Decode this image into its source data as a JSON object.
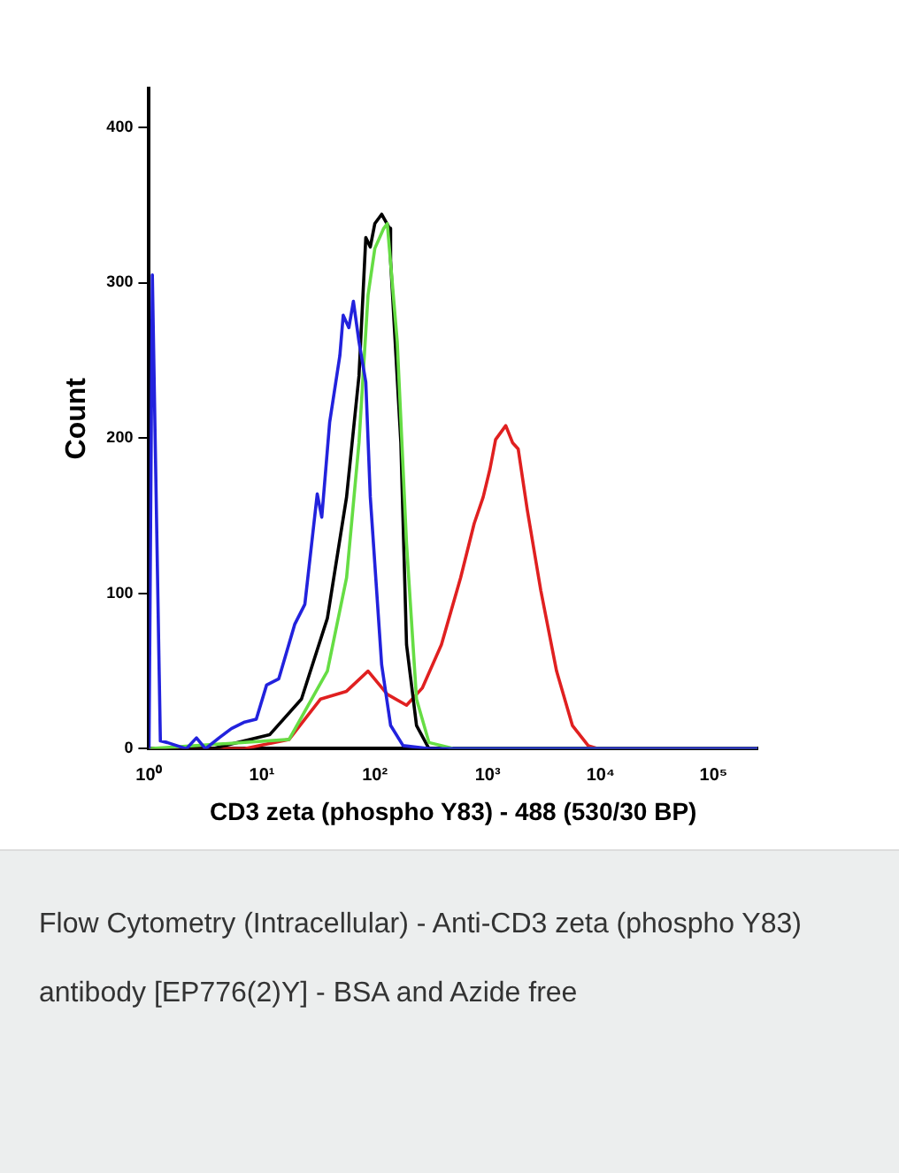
{
  "chart_data": {
    "type": "line",
    "xlabel": "CD3 zeta (phospho Y83) - 488 (530/30 BP)",
    "ylabel": "Count",
    "annotations": [
      "Flow Cytometry (Intracellular) - Anti-CD3 zeta (phospho Y83) antibody [EP776(2)Y] - BSA and Azide free"
    ],
    "log": "x",
    "grid": false,
    "legend": false,
    "marker": "none",
    "line_style": "solid",
    "xlim": [
      1,
      245000
    ],
    "ylim": [
      0,
      425
    ],
    "xticks": [
      {
        "value": 1,
        "label": "10⁰"
      },
      {
        "value": 10,
        "label": "10¹"
      },
      {
        "value": 100,
        "label": "10²"
      },
      {
        "value": 1000,
        "label": "10³"
      },
      {
        "value": 10000,
        "label": "10⁴"
      },
      {
        "value": 100000,
        "label": "10⁵"
      }
    ],
    "yticks": [
      0,
      100,
      200,
      300,
      400
    ],
    "series": [
      {
        "color": "#2222dd",
        "x": [
          1,
          1.07,
          1.26,
          1.45,
          2.14,
          2.63,
          3.16,
          4.17,
          5.37,
          6.92,
          8.91,
          11,
          14.1,
          19.5,
          24,
          30.9,
          33.9,
          39.8,
          49,
          52.5,
          58.9,
          64.6,
          72.4,
          83.2,
          91.2,
          115,
          138,
          178,
          302,
          245000
        ],
        "values": [
          0,
          305,
          5,
          4,
          0,
          7,
          0,
          7,
          13,
          17,
          19,
          41,
          45,
          80,
          93,
          164,
          149,
          210,
          253,
          279,
          271,
          288,
          262,
          236,
          162,
          54,
          15,
          2,
          0,
          0
        ]
      },
      {
        "color": "#66dd44",
        "x": [
          1,
          17.4,
          38,
          56.2,
          72.4,
          87.1,
          100,
          120,
          129,
          158,
          191,
          234,
          302,
          501,
          245000
        ],
        "values": [
          0,
          6,
          50,
          110,
          197,
          292,
          322,
          335,
          338,
          262,
          132,
          32,
          4,
          0,
          0
        ]
      },
      {
        "color": "#000000",
        "x": [
          1,
          3.63,
          11.7,
          22.4,
          38,
          56.2,
          72.4,
          83.2,
          91.2,
          100,
          115,
          135,
          138,
          170,
          191,
          234,
          302,
          245000
        ],
        "values": [
          0,
          0,
          9,
          32,
          84,
          162,
          240,
          329,
          323,
          338,
          344,
          335,
          314,
          197,
          67,
          15,
          0,
          0
        ]
      },
      {
        "color": "#e02020",
        "x": [
          1,
          6.92,
          17.4,
          33.1,
          56.2,
          87.1,
          129,
          191,
          263,
          389,
          575,
          759,
          912,
          1047,
          1175,
          1445,
          1660,
          1862,
          2239,
          2951,
          4074,
          5623,
          7762,
          9550,
          245000
        ],
        "values": [
          0,
          0,
          6,
          32,
          37,
          50,
          35,
          28,
          39,
          67,
          110,
          145,
          162,
          180,
          199,
          208,
          197,
          193,
          154,
          102,
          50,
          15,
          2,
          0,
          0
        ]
      }
    ]
  }
}
